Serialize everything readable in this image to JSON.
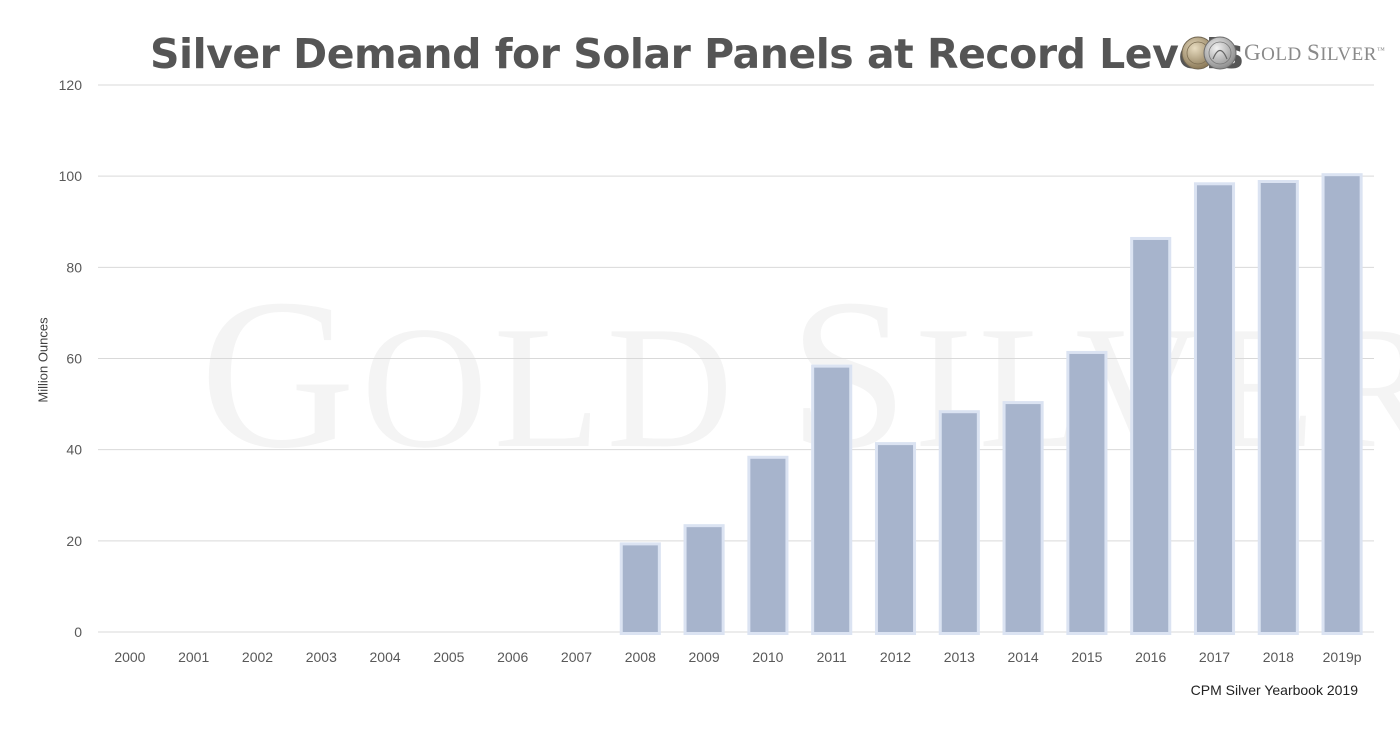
{
  "title": "Silver Demand for Solar Panels at Record Levels",
  "logo": {
    "brand_first": "G",
    "brand_first_rest": "OLD",
    "brand_second": "S",
    "brand_second_rest": "ILVER",
    "trademark": "™"
  },
  "watermark": {
    "first": "G",
    "first_rest": "OLD",
    "second": "S",
    "second_rest": "ILVER"
  },
  "source": "CPM Silver Yearbook 2019",
  "colors": {
    "bar_fill": "#a7b4cc",
    "bar_glow": "#dbe3f2",
    "grid": "#d9d9d9",
    "axis_text": "#595959"
  },
  "chart_data": {
    "type": "bar",
    "title": "Silver Demand for Solar Panels at Record Levels",
    "xlabel": "",
    "ylabel": "Million Ounces",
    "ylim": [
      0,
      120
    ],
    "yticks": [
      0,
      20,
      40,
      60,
      80,
      100,
      120
    ],
    "grid": true,
    "legend": "none",
    "categories": [
      "2000",
      "2001",
      "2002",
      "2003",
      "2004",
      "2005",
      "2006",
      "2007",
      "2008",
      "2009",
      "2010",
      "2011",
      "2012",
      "2013",
      "2014",
      "2015",
      "2016",
      "2017",
      "2018",
      "2019p"
    ],
    "values": [
      0,
      0,
      0,
      0,
      0,
      0,
      0,
      0,
      19,
      23,
      38,
      58,
      41,
      48,
      50,
      61,
      86,
      98,
      98.5,
      100
    ]
  }
}
